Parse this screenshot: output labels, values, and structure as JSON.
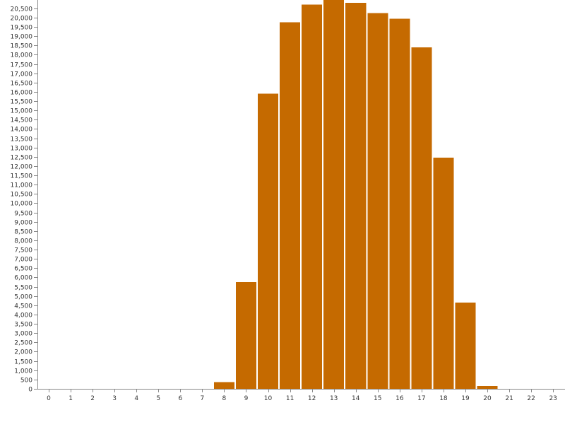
{
  "chart_data": {
    "type": "bar",
    "title": "",
    "xlabel": "",
    "ylabel": "",
    "categories": [
      "0",
      "1",
      "2",
      "3",
      "4",
      "5",
      "6",
      "7",
      "8",
      "9",
      "10",
      "11",
      "12",
      "13",
      "14",
      "15",
      "16",
      "17",
      "18",
      "19",
      "20",
      "21",
      "22",
      "23"
    ],
    "values": [
      0,
      0,
      0,
      0,
      0,
      0,
      0,
      0,
      370,
      5750,
      15900,
      19750,
      20700,
      20950,
      20800,
      20250,
      19950,
      18400,
      12450,
      4650,
      150,
      0,
      0,
      0
    ],
    "ylim": [
      0,
      20950
    ],
    "yticks": [
      0,
      500,
      1000,
      1500,
      2000,
      2500,
      3000,
      3500,
      4000,
      4500,
      5000,
      5500,
      6000,
      6500,
      7000,
      7500,
      8000,
      8500,
      9000,
      9500,
      10000,
      10500,
      11000,
      11500,
      12000,
      12500,
      13000,
      13500,
      14000,
      14500,
      15000,
      15500,
      16000,
      16500,
      17000,
      17500,
      18000,
      18500,
      19000,
      19500,
      20000,
      20500
    ],
    "grid": false,
    "legend": "none",
    "bar_color": "#c56a00"
  }
}
